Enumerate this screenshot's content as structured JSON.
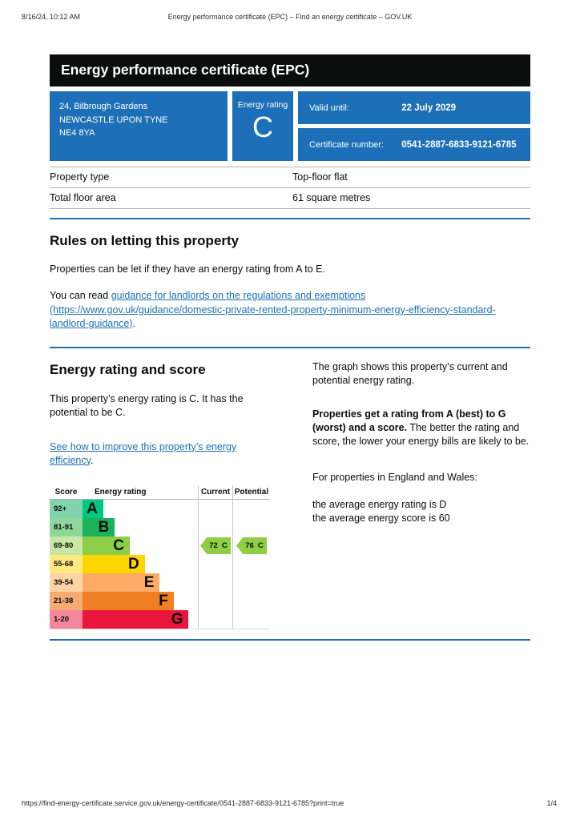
{
  "print_header": {
    "timestamp": "8/16/24, 10:12 AM",
    "title": "Energy performance certificate (EPC) – Find an energy certificate – GOV.UK"
  },
  "banner": {
    "title": "Energy performance certificate (EPC)"
  },
  "summary": {
    "address_lines": [
      "24, Bilbrough Gardens",
      "NEWCASTLE UPON TYNE",
      "NE4 8YA"
    ],
    "rating_label": "Energy rating",
    "rating_value": "C",
    "valid_until_label": "Valid until:",
    "valid_until_value": "22 July 2029",
    "certificate_number_label": "Certificate number:",
    "certificate_number_value": "0541-2887-6833-9121-6785",
    "box_color": "#1d70b8"
  },
  "property_table": {
    "rows": [
      {
        "label": "Property type",
        "value": "Top-floor flat"
      },
      {
        "label": "Total floor area",
        "value": "61 square metres"
      }
    ]
  },
  "letting_rules": {
    "heading": "Rules on letting this property",
    "paragraph": "Properties can be let if they have an energy rating from A to E.",
    "link_intro": "You can read ",
    "link_text": "guidance for landlords on the regulations and exemptions (https://www.gov.uk/guidance/domestic-private-rented-property-minimum-energy-efficiency-standard-landlord-guidance)",
    "link_suffix": "."
  },
  "rating_section": {
    "heading": "Energy rating and score",
    "paragraph": "This property’s energy rating is C. It has the potential to be C.",
    "link_text": "See how to improve this property’s energy efficiency",
    "link_suffix": ".",
    "right": {
      "p1": "The graph shows this property’s current and potential energy rating.",
      "p2_bold": "Properties get a rating from A (best) to G (worst) and a score.",
      "p2_rest": " The better the rating and score, the lower your energy bills are likely to be.",
      "p3": "For properties in England and Wales:",
      "p4a": "the average energy rating is D",
      "p4b": "the average energy score is 60"
    }
  },
  "chart_data": {
    "type": "bar",
    "title": "Energy rating and score chart",
    "columns": [
      "Score",
      "Energy rating",
      "Current",
      "Potential"
    ],
    "bands": [
      {
        "score_range": "92+",
        "letter": "A",
        "color": "#00c781",
        "tint": "#7fd4ae",
        "width_pct": 18
      },
      {
        "score_range": "81-91",
        "letter": "B",
        "color": "#19b459",
        "tint": "#8ed79b",
        "width_pct": 28
      },
      {
        "score_range": "69-80",
        "letter": "C",
        "color": "#8dce46",
        "tint": "#c8e8a3",
        "width_pct": 41
      },
      {
        "score_range": "55-68",
        "letter": "D",
        "color": "#ffd500",
        "tint": "#ffea80",
        "width_pct": 54
      },
      {
        "score_range": "39-54",
        "letter": "E",
        "color": "#fcaa65",
        "tint": "#fdd4a3",
        "width_pct": 67
      },
      {
        "score_range": "21-38",
        "letter": "F",
        "color": "#ef8023",
        "tint": "#f5ab71",
        "width_pct": 79
      },
      {
        "score_range": "1-20",
        "letter": "G",
        "color": "#e9153b",
        "tint": "#f4879b",
        "width_pct": 92
      }
    ],
    "current": {
      "score": 72,
      "band": "C",
      "color": "#8dce46"
    },
    "potential": {
      "score": 76,
      "band": "C",
      "color": "#8dce46"
    }
  },
  "print_footer": {
    "url": "https://find-energy-certificate.service.gov.uk/energy-certificate/0541-2887-6833-9121-6785?print=true",
    "page": "1/4"
  }
}
